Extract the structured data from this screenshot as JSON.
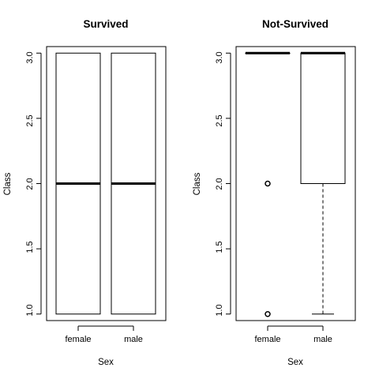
{
  "chart_data": [
    {
      "type": "boxplot",
      "title": "Survived",
      "xlabel": "Sex",
      "ylabel": "Class",
      "categories": [
        "female",
        "male"
      ],
      "ylim": [
        0.95,
        3.05
      ],
      "yticks": [
        "1.0",
        "1.5",
        "2.0",
        "2.5",
        "3.0"
      ],
      "boxes": [
        {
          "min": 1.0,
          "q1": 1.0,
          "median": 2.0,
          "q3": 3.0,
          "max": 3.0,
          "outliers": []
        },
        {
          "min": 1.0,
          "q1": 1.0,
          "median": 2.0,
          "q3": 3.0,
          "max": 3.0,
          "outliers": []
        }
      ]
    },
    {
      "type": "boxplot",
      "title": "Not-Survived",
      "xlabel": "Sex",
      "ylabel": "Class",
      "categories": [
        "female",
        "male"
      ],
      "ylim": [
        0.95,
        3.05
      ],
      "yticks": [
        "1.0",
        "1.5",
        "2.0",
        "2.5",
        "3.0"
      ],
      "boxes": [
        {
          "min": 3.0,
          "q1": 3.0,
          "median": 3.0,
          "q3": 3.0,
          "max": 3.0,
          "outliers": [
            1.0,
            2.0
          ]
        },
        {
          "min": 1.0,
          "q1": 2.0,
          "median": 3.0,
          "q3": 3.0,
          "max": 3.0,
          "outliers": []
        }
      ]
    }
  ]
}
